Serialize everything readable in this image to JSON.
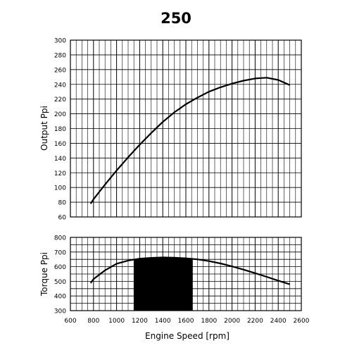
{
  "chart_data": [
    {
      "type": "line",
      "title": "250",
      "xlabel": "",
      "ylabel": "Output Ppi",
      "xlim": [
        600,
        2600
      ],
      "ylim": [
        60,
        300
      ],
      "x_ticks_visible": false,
      "y_ticks": [
        60,
        80,
        100,
        120,
        140,
        160,
        180,
        200,
        220,
        240,
        260,
        280,
        300
      ],
      "grid": true,
      "series": [
        {
          "x": [
            775,
            800,
            900,
            1000,
            1100,
            1200,
            1300,
            1400,
            1500,
            1600,
            1700,
            1800,
            1900,
            2000,
            2100,
            2200,
            2300,
            2400,
            2500
          ],
          "y": [
            78,
            84,
            104,
            123,
            141,
            158,
            174,
            189,
            202,
            213,
            222,
            230,
            236,
            241,
            245,
            248,
            249,
            246,
            239
          ]
        }
      ],
      "colors": {
        "line": "#000000",
        "grid": "#000000"
      }
    },
    {
      "type": "area",
      "title": "",
      "xlabel": "Engine Speed [rpm]",
      "ylabel": "Torque Ppi",
      "xlim": [
        600,
        2600
      ],
      "ylim": [
        300,
        800
      ],
      "x_ticks": [
        600,
        800,
        1000,
        1200,
        1400,
        1600,
        1800,
        2000,
        2200,
        2400,
        2600
      ],
      "y_ticks": [
        300,
        400,
        500,
        600,
        700,
        800
      ],
      "grid": true,
      "series": [
        {
          "x": [
            775,
            800,
            900,
            1000,
            1100,
            1200,
            1300,
            1400,
            1500,
            1600,
            1700,
            1800,
            1900,
            2000,
            2100,
            2200,
            2300,
            2400,
            2500
          ],
          "y": [
            488,
            515,
            575,
            620,
            642,
            655,
            660,
            663,
            661,
            657,
            650,
            638,
            622,
            602,
            580,
            556,
            531,
            505,
            480
          ]
        }
      ],
      "shaded_range": {
        "x": [
          1150,
          1660
        ],
        "fill": "#000000"
      },
      "colors": {
        "line": "#000000",
        "grid": "#000000"
      }
    }
  ]
}
